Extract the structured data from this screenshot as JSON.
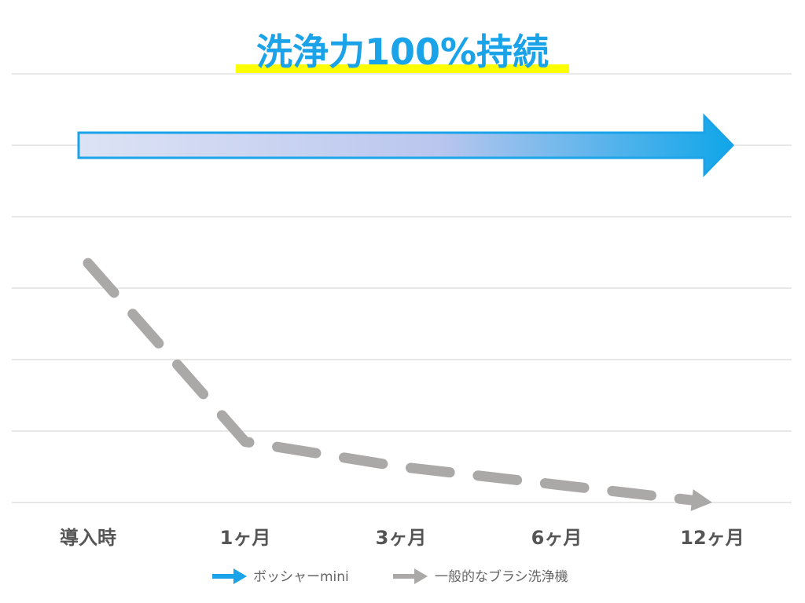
{
  "chart_data": {
    "type": "line",
    "title": "洗浄力100%持続",
    "categories": [
      "導入時",
      "1ヶ月",
      "3ヶ月",
      "6ヶ月",
      "12ヶ月"
    ],
    "ylim": [
      0,
      100
    ],
    "grid": true,
    "legend_position": "bottom",
    "series": [
      {
        "name": "ボッシャーmini",
        "style": "gradient-arrow",
        "values": [
          100,
          100,
          100,
          100,
          100
        ],
        "color": "#1AA3E8"
      },
      {
        "name": "一般的なブラシ洗浄機",
        "style": "dashed-arrow",
        "values": [
          67,
          17,
          10,
          5,
          0
        ],
        "color": "#ABA8A8"
      }
    ]
  },
  "colors": {
    "title": "#1AA3E8",
    "title_highlight": "#FFFF00",
    "gradient_start": "#DDE3F5",
    "gradient_mid": "#BAC6EE",
    "gradient_end": "#0FA6E9",
    "grid": "#D9D9D9",
    "tick": "#555555"
  }
}
